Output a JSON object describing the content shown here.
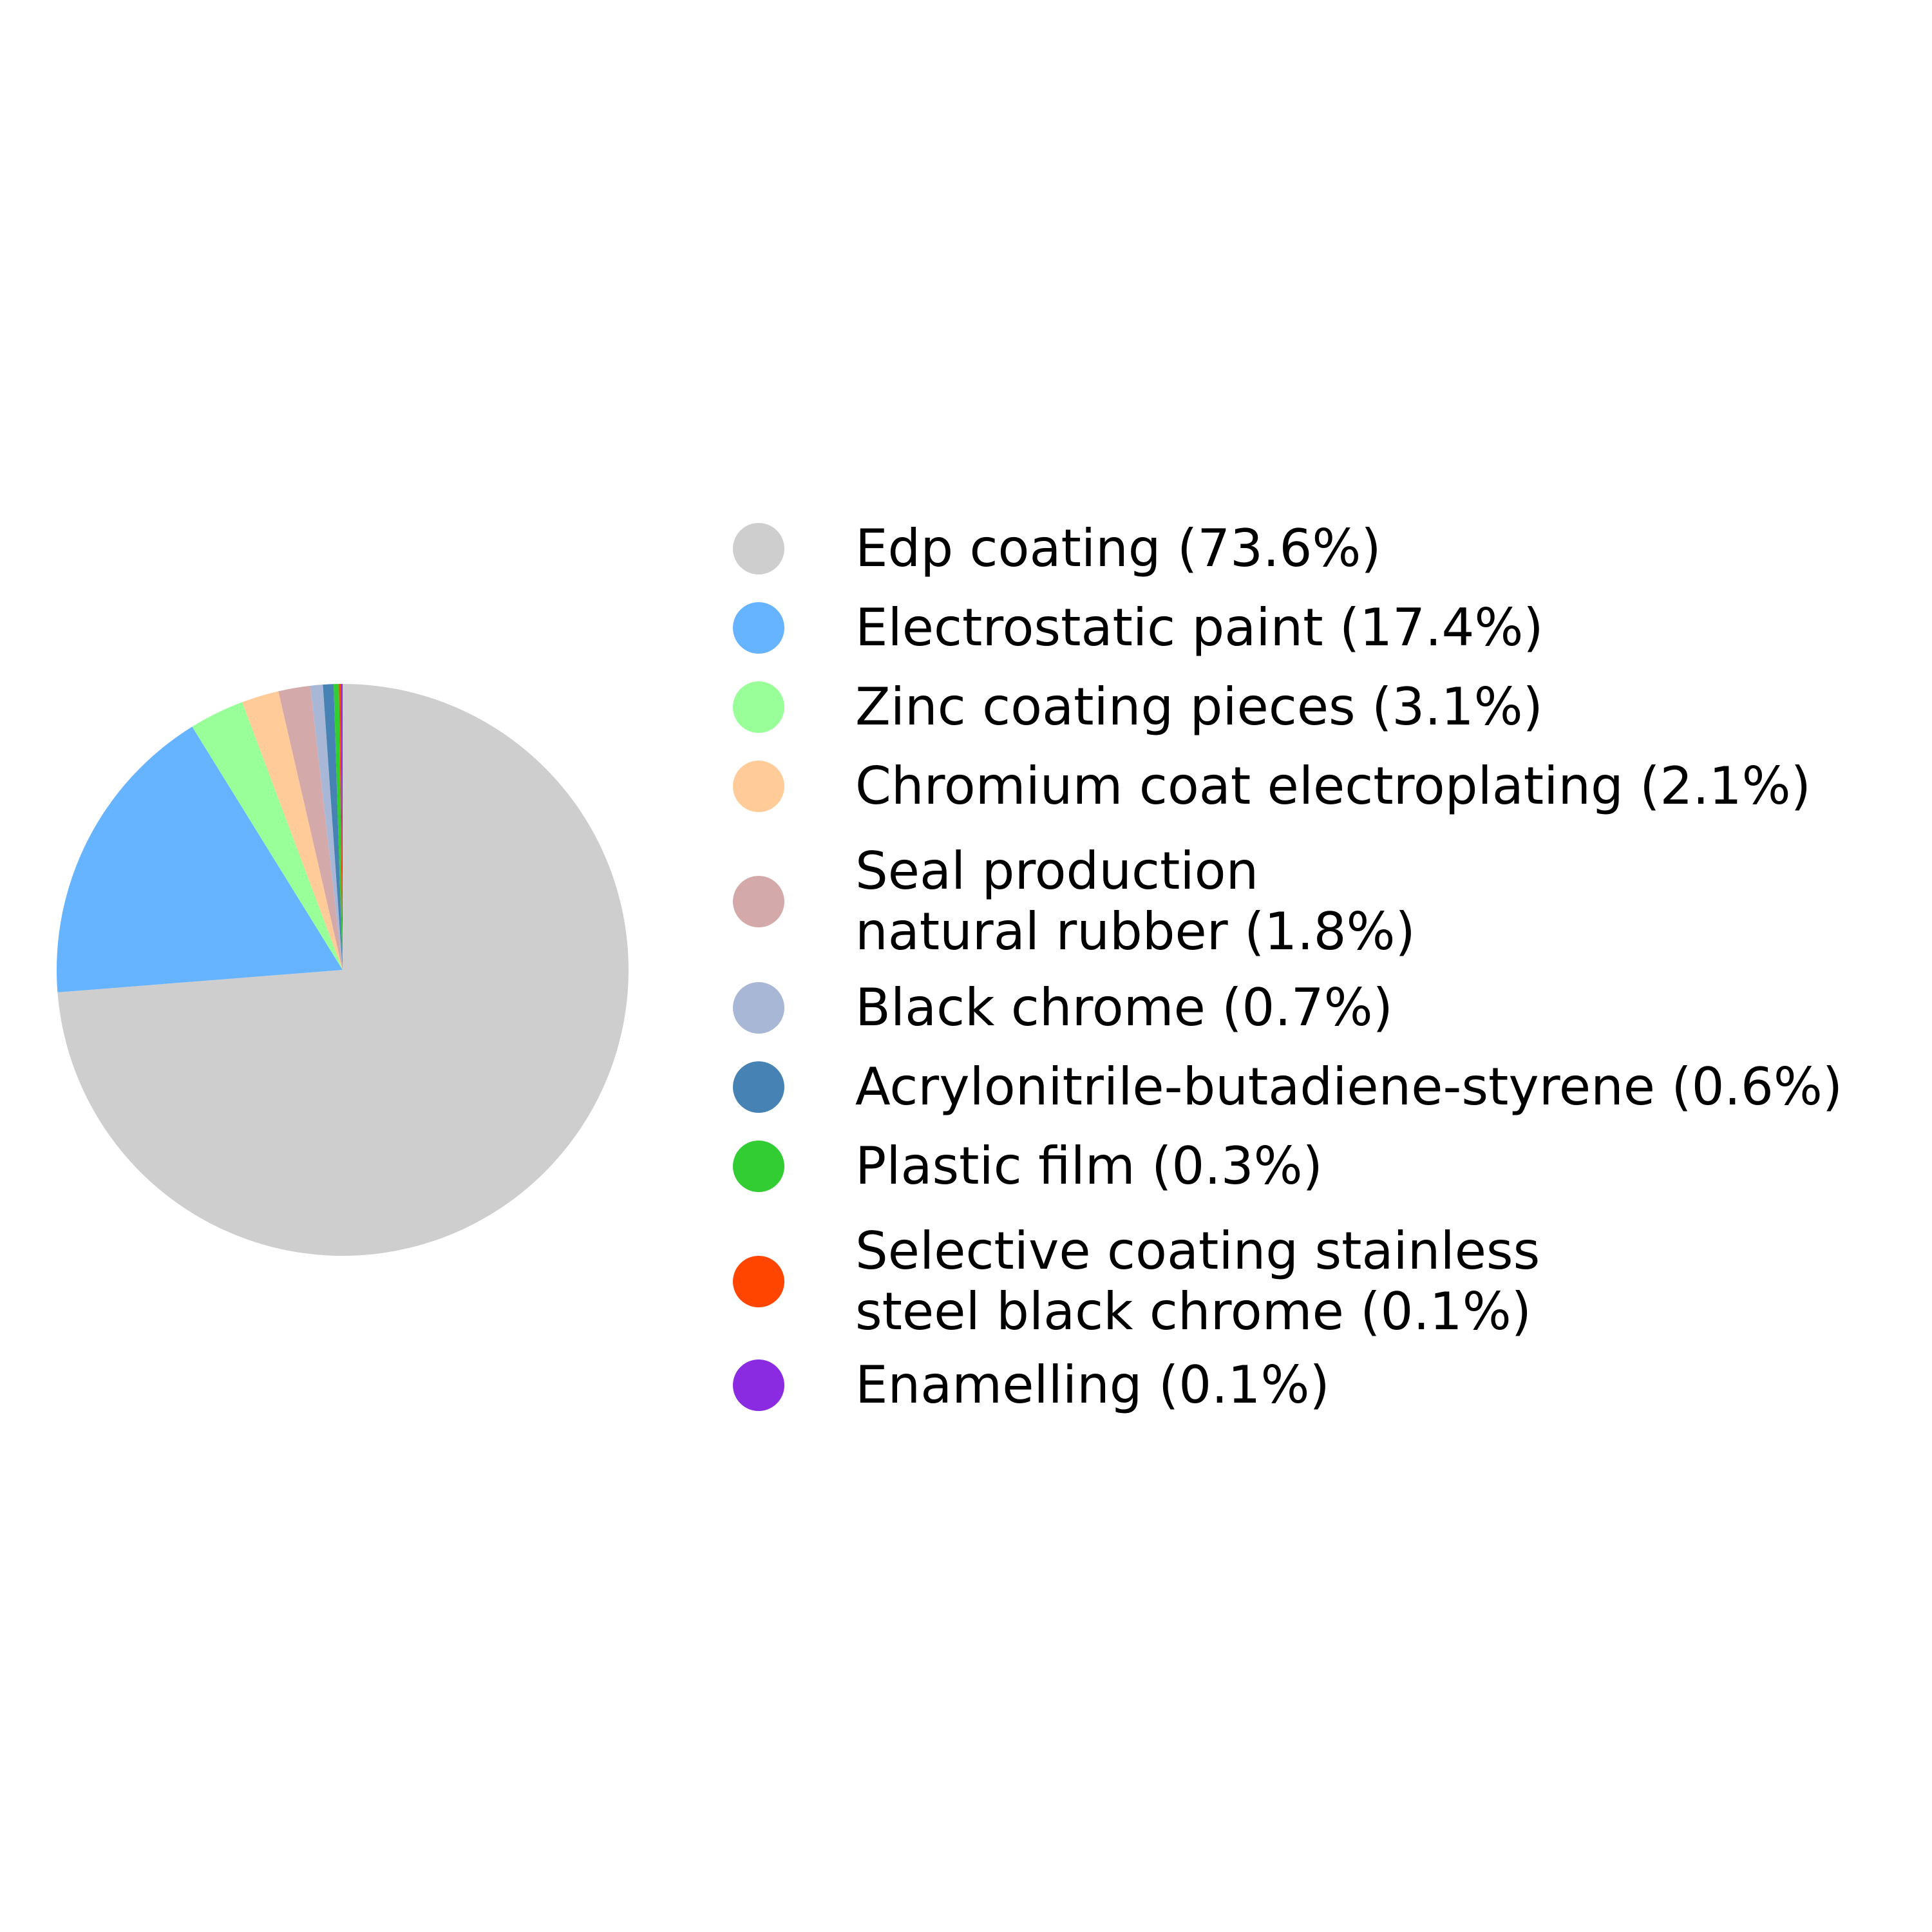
{
  "chart_data": {
    "type": "pie",
    "title": "",
    "start_angle": "top",
    "direction": "clockwise",
    "legend_placement": "right",
    "slices": [
      {
        "label": "Edp coating (73.6%)",
        "value": 73.6,
        "color": "#cecece"
      },
      {
        "label": "Electrostatic paint (17.4%)",
        "value": 17.4,
        "color": "#66b3ff"
      },
      {
        "label": "Zinc coating pieces (3.1%)",
        "value": 3.1,
        "color": "#99ff99"
      },
      {
        "label": "Chromium coat electroplating (2.1%)",
        "value": 2.1,
        "color": "#ffcc99"
      },
      {
        "label": "Seal production\nnatural rubber (1.8%)",
        "value": 1.8,
        "color": "#d4a9a9"
      },
      {
        "label": "Black chrome (0.7%)",
        "value": 0.7,
        "color": "#a9b7d6"
      },
      {
        "label": "Acrylonitrile-butadiene-styrene (0.6%)",
        "value": 0.6,
        "color": "#4682b4"
      },
      {
        "label": "Plastic film (0.3%)",
        "value": 0.3,
        "color": "#32cd32"
      },
      {
        "label": "Selective coating stainless\nsteel black chrome (0.1%)",
        "value": 0.1,
        "color": "#ff4500"
      },
      {
        "label": "Enamelling (0.1%)",
        "value": 0.1,
        "color": "#8a2be2"
      }
    ]
  }
}
